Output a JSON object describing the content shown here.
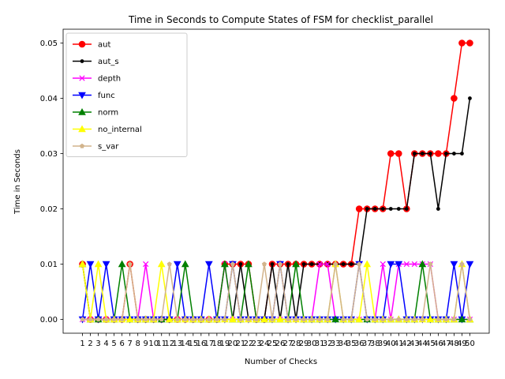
{
  "chart_data": {
    "type": "line",
    "title": "Time in Seconds to Compute States of FSM for checklist_parallel",
    "xlabel": "Number of Checks",
    "ylabel": "Time in Seconds",
    "x": [
      1,
      2,
      3,
      4,
      5,
      6,
      7,
      8,
      9,
      10,
      11,
      12,
      13,
      14,
      15,
      16,
      17,
      18,
      19,
      20,
      21,
      22,
      23,
      24,
      25,
      26,
      27,
      28,
      29,
      30,
      31,
      32,
      33,
      34,
      35,
      36,
      37,
      38,
      39,
      40,
      41,
      42,
      43,
      44,
      45,
      46,
      47,
      48,
      49,
      50
    ],
    "xlim": [
      -1.45,
      52.45
    ],
    "ylim": [
      -0.0025,
      0.0525
    ],
    "yticks": [
      0.0,
      0.01,
      0.02,
      0.03,
      0.04,
      0.05
    ],
    "ytick_labels": [
      "0.00",
      "0.01",
      "0.02",
      "0.03",
      "0.04",
      "0.05"
    ],
    "legend_position": "upper-left",
    "series": [
      {
        "name": "aut",
        "color": "#ff0000",
        "marker": "circle",
        "values": [
          0.01,
          0,
          0,
          0,
          0,
          0,
          0.01,
          0,
          0,
          0,
          0,
          0,
          0,
          0,
          0,
          0,
          0,
          0,
          0.01,
          0.01,
          0.01,
          0.01,
          0,
          0,
          0.01,
          0.01,
          0.01,
          0.01,
          0.01,
          0.01,
          0.01,
          0.01,
          0.01,
          0.01,
          0.01,
          0.02,
          0.02,
          0.02,
          0.02,
          0.03,
          0.03,
          0.02,
          0.03,
          0.03,
          0.03,
          0.03,
          0.03,
          0.04,
          0.05,
          0.05
        ]
      },
      {
        "name": "aut_s",
        "color": "#000000",
        "marker": "point",
        "values": [
          0,
          0,
          0,
          0,
          0,
          0,
          0,
          0,
          0,
          0,
          0,
          0,
          0,
          0,
          0,
          0,
          0,
          0,
          0,
          0,
          0.01,
          0,
          0,
          0,
          0.01,
          0,
          0.01,
          0,
          0.01,
          0.01,
          0.01,
          0.01,
          0.01,
          0.01,
          0.01,
          0.01,
          0.02,
          0.02,
          0.02,
          0.02,
          0.02,
          0.02,
          0.03,
          0.03,
          0.03,
          0.02,
          0.03,
          0.03,
          0.03,
          0.04
        ]
      },
      {
        "name": "depth",
        "color": "#ff00ff",
        "marker": "x",
        "values": [
          0,
          0,
          0,
          0,
          0,
          0,
          0,
          0,
          0.01,
          0,
          0,
          0,
          0,
          0,
          0,
          0,
          0,
          0,
          0.01,
          0,
          0,
          0,
          0,
          0,
          0,
          0,
          0,
          0,
          0,
          0,
          0.01,
          0.01,
          0,
          0,
          0,
          0,
          0,
          0,
          0.01,
          0,
          0.01,
          0.01,
          0.01,
          0.01,
          0.01,
          0,
          0,
          0,
          0,
          0
        ]
      },
      {
        "name": "func",
        "color": "#0000ff",
        "marker": "triangle-down",
        "values": [
          0,
          0.01,
          0,
          0.01,
          0,
          0,
          0,
          0,
          0,
          0,
          0,
          0,
          0.01,
          0,
          0,
          0,
          0.01,
          0,
          0,
          0.01,
          0,
          0,
          0,
          0,
          0,
          0.01,
          0,
          0,
          0,
          0,
          0,
          0,
          0,
          0,
          0,
          0.01,
          0,
          0,
          0,
          0.01,
          0.01,
          0,
          0,
          0,
          0,
          0,
          0,
          0.01,
          0,
          0.01
        ]
      },
      {
        "name": "norm",
        "color": "#008000",
        "marker": "triangle-up",
        "values": [
          0.01,
          0,
          0,
          0,
          0,
          0.01,
          0,
          0,
          0,
          0,
          0,
          0,
          0,
          0.01,
          0,
          0,
          0,
          0,
          0.01,
          0,
          0,
          0.01,
          0,
          0,
          0,
          0,
          0,
          0.01,
          0,
          0,
          0,
          0,
          0,
          0,
          0,
          0,
          0,
          0,
          0,
          0,
          0,
          0,
          0,
          0.01,
          0,
          0,
          0,
          0,
          0,
          0
        ]
      },
      {
        "name": "no_internal",
        "color": "#ffff00",
        "marker": "triangle-up",
        "values": [
          0.01,
          0,
          0.01,
          0,
          0,
          0,
          0,
          0,
          0,
          0,
          0.01,
          0,
          0,
          0,
          0,
          0,
          0,
          0,
          0,
          0,
          0,
          0,
          0,
          0,
          0,
          0,
          0,
          0,
          0,
          0,
          0,
          0,
          0.01,
          0,
          0,
          0,
          0.01,
          0,
          0,
          0,
          0,
          0,
          0,
          0,
          0,
          0,
          0,
          0,
          0.01,
          0
        ]
      },
      {
        "name": "s_var",
        "color": "#d2b48c",
        "marker": "pentagon",
        "values": [
          0,
          0,
          0,
          0,
          0,
          0,
          0.01,
          0,
          0,
          0,
          0,
          0.01,
          0,
          0,
          0,
          0,
          0,
          0,
          0,
          0.01,
          0,
          0,
          0,
          0.01,
          0,
          0.01,
          0,
          0,
          0,
          0,
          0,
          0,
          0.01,
          0,
          0,
          0.01,
          0,
          0,
          0,
          0,
          0,
          0,
          0,
          0,
          0.01,
          0,
          0,
          0,
          0.01,
          0
        ]
      }
    ]
  }
}
